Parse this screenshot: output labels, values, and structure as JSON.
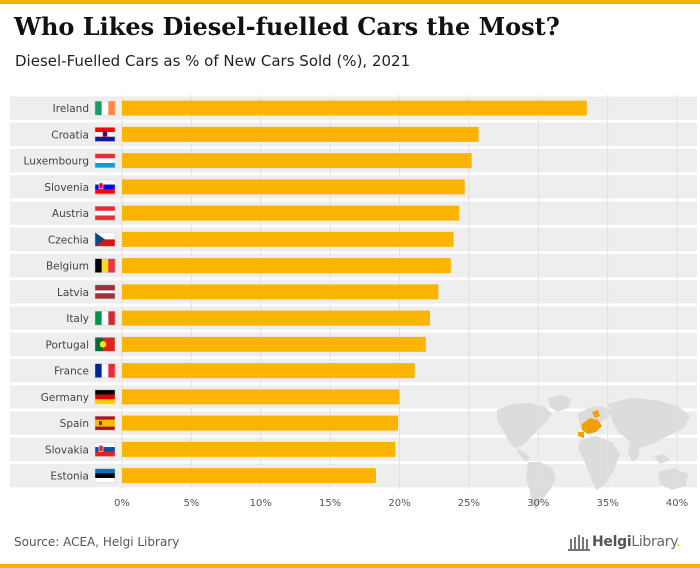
{
  "header": {
    "title": "Who Likes Diesel-fuelled Cars the Most?",
    "subtitle": "Diesel-Fuelled Cars as % of New Cars Sold (%), 2021"
  },
  "footer": {
    "source": "Source: ACEA, Helgi Library",
    "brand_primary": "Helgi",
    "brand_secondary": "Library",
    "brand_suffix": "."
  },
  "colors": {
    "bar": "#fbb500",
    "row_band": "#eeeeee",
    "grid": "#e2e2e2",
    "accent": "#f3b200",
    "map": "#dcdcdc",
    "map_highlight": "#f0a000"
  },
  "icons": {
    "map": "world-map-icon",
    "logo": "helgi-library-logo"
  },
  "chart_data": {
    "type": "bar",
    "orientation": "horizontal",
    "title": "Who Likes Diesel-fuelled Cars the Most?",
    "subtitle": "Diesel-Fuelled Cars as % of New Cars Sold (%), 2021",
    "xlabel": "",
    "ylabel": "",
    "xlim": [
      0,
      40
    ],
    "x_ticks": [
      0,
      5,
      10,
      15,
      20,
      25,
      30,
      35,
      40
    ],
    "x_tick_labels": [
      "0%",
      "5%",
      "10%",
      "15%",
      "20%",
      "25%",
      "30%",
      "35%",
      "40%"
    ],
    "grid": true,
    "legend": "none",
    "categories": [
      "Ireland",
      "Croatia",
      "Luxembourg",
      "Slovenia",
      "Austria",
      "Czechia",
      "Belgium",
      "Latvia",
      "Italy",
      "Portugal",
      "France",
      "Germany",
      "Spain",
      "Slovakia",
      "Estonia"
    ],
    "values": [
      33.5,
      25.7,
      25.2,
      24.7,
      24.3,
      23.9,
      23.7,
      22.8,
      22.2,
      21.9,
      21.1,
      20.0,
      19.9,
      19.7,
      18.3
    ],
    "flags": [
      {
        "country": "Ireland",
        "type": "v",
        "colors": [
          "#169b62",
          "#ffffff",
          "#ff883e"
        ]
      },
      {
        "country": "Croatia",
        "type": "h",
        "colors": [
          "#ff0000",
          "#ffffff",
          "#171796"
        ],
        "emblem": true
      },
      {
        "country": "Luxembourg",
        "type": "h",
        "colors": [
          "#ed2939",
          "#ffffff",
          "#00a1de"
        ]
      },
      {
        "country": "Slovenia",
        "type": "h",
        "colors": [
          "#ffffff",
          "#0000ff",
          "#ff0000"
        ],
        "emblem": true
      },
      {
        "country": "Austria",
        "type": "h",
        "colors": [
          "#ed2939",
          "#ffffff",
          "#ed2939"
        ]
      },
      {
        "country": "Czechia",
        "type": "cz",
        "colors": [
          "#ffffff",
          "#d7141a",
          "#11457e"
        ]
      },
      {
        "country": "Belgium",
        "type": "v",
        "colors": [
          "#000000",
          "#fdda24",
          "#ef3340"
        ]
      },
      {
        "country": "Latvia",
        "type": "lv",
        "colors": [
          "#9e3039",
          "#ffffff",
          "#9e3039"
        ]
      },
      {
        "country": "Italy",
        "type": "v",
        "colors": [
          "#009246",
          "#ffffff",
          "#ce2b37"
        ]
      },
      {
        "country": "Portugal",
        "type": "pt",
        "colors": [
          "#046a38",
          "#da291c",
          "#ffe900"
        ]
      },
      {
        "country": "France",
        "type": "v",
        "colors": [
          "#002395",
          "#ffffff",
          "#ed2939"
        ]
      },
      {
        "country": "Germany",
        "type": "h",
        "colors": [
          "#000000",
          "#dd0000",
          "#ffce00"
        ]
      },
      {
        "country": "Spain",
        "type": "es",
        "colors": [
          "#aa151b",
          "#f1bf00",
          "#aa151b"
        ]
      },
      {
        "country": "Slovakia",
        "type": "h",
        "colors": [
          "#ffffff",
          "#0b4ea2",
          "#ee1c25"
        ],
        "emblem": true
      },
      {
        "country": "Estonia",
        "type": "h",
        "colors": [
          "#0072ce",
          "#000000",
          "#ffffff"
        ]
      }
    ]
  }
}
